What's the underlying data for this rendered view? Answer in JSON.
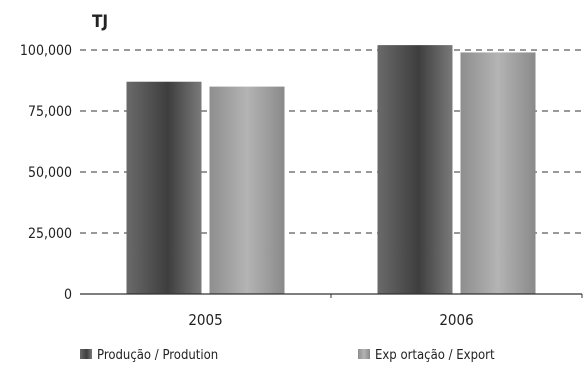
{
  "chart_data": {
    "type": "bar",
    "unit_label": "TJ",
    "categories": [
      "2005",
      "2006"
    ],
    "series": [
      {
        "name": "Produção / Prodution",
        "values": [
          87000,
          102000
        ]
      },
      {
        "name": "Exp ortação / Export",
        "values": [
          85000,
          99000
        ]
      }
    ],
    "ylim": [
      0,
      100000
    ],
    "yticks": [
      0,
      25000,
      50000,
      75000,
      100000
    ],
    "ytick_labels": [
      "0",
      "25,000",
      "50,000",
      "75,000",
      "100,000"
    ],
    "grid": "dashed horizontal",
    "legend_position": "bottom",
    "colors": {
      "series1": "#5a5a5a",
      "series2": "#9a9a9a",
      "grid": "#333333"
    }
  }
}
